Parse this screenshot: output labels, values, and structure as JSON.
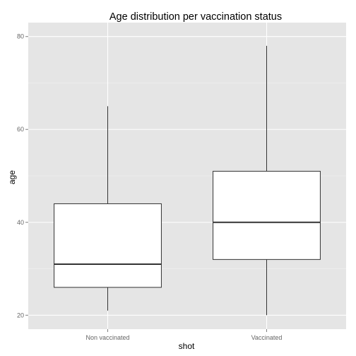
{
  "chart_data": {
    "type": "boxplot",
    "title": "Age distribution per vaccination status",
    "xlabel": "shot",
    "ylabel": "age",
    "ylim": [
      17,
      83
    ],
    "yticks": [
      20,
      40,
      60,
      80
    ],
    "grid": true,
    "categories": [
      "Non vaccinated",
      "Vaccinated"
    ],
    "boxes": [
      {
        "category": "Non vaccinated",
        "min": 21,
        "q1": 26,
        "median": 31,
        "q3": 44,
        "max": 65
      },
      {
        "category": "Vaccinated",
        "min": 20,
        "q1": 32,
        "median": 40,
        "q3": 51,
        "max": 78
      }
    ],
    "colors": {
      "panel": "#e5e5e5",
      "grid_major": "#ffffff",
      "grid_minor": "#f2f2f2",
      "box_fill": "#ffffff",
      "box_line": "#333333"
    }
  }
}
